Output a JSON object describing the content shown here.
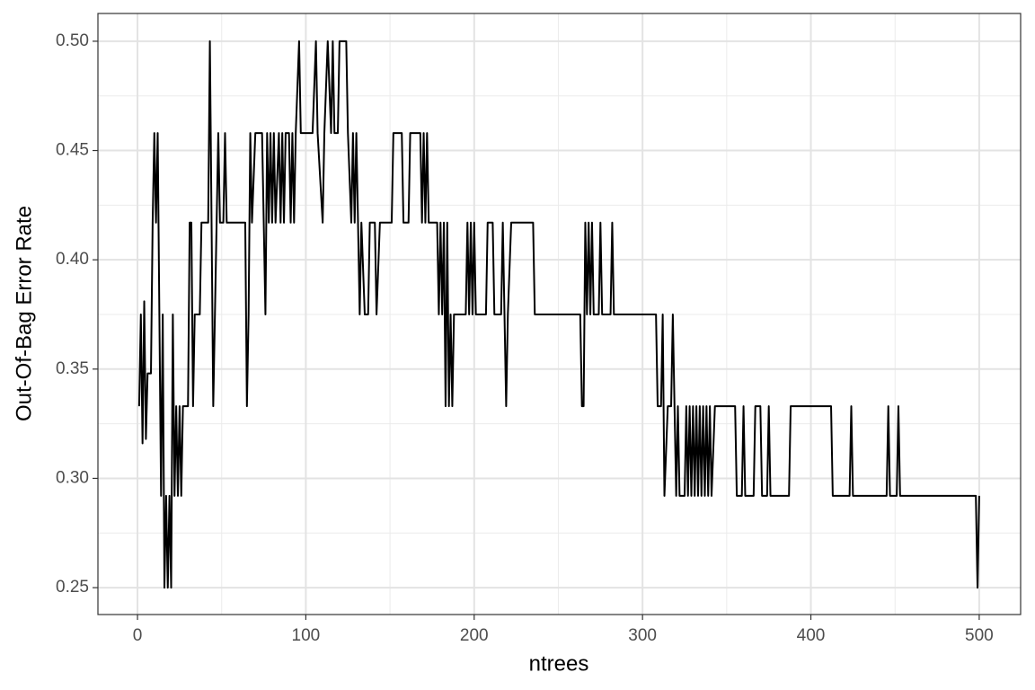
{
  "chart_data": {
    "type": "line",
    "xlabel": "ntrees",
    "ylabel": "Out-Of-Bag Error Rate",
    "color": "#000000",
    "grid": true,
    "xlim": [
      -23.5,
      524.6
    ],
    "xticks": [
      0,
      100,
      200,
      300,
      400,
      500
    ],
    "ylim": [
      0.2377,
      0.5127
    ],
    "yticks": [
      0.25,
      {
        "value": 0.3,
        "label": "0.30"
      },
      0.35,
      {
        "value": 0.4,
        "label": "0.40"
      },
      0.45,
      {
        "value": 0.5,
        "label": "0.50"
      }
    ],
    "x": [
      1,
      2,
      3,
      4,
      5,
      6,
      8,
      9,
      10,
      11,
      12,
      13,
      14,
      15,
      16,
      17,
      18,
      19,
      20,
      21,
      22,
      23,
      24,
      25,
      26,
      27,
      30,
      31,
      32,
      33,
      34,
      37,
      38,
      42,
      43,
      44,
      45,
      47,
      48,
      49,
      51,
      52,
      53,
      64,
      65,
      66,
      67,
      68,
      70,
      74,
      75,
      76,
      77,
      78,
      79,
      80,
      81,
      82,
      84,
      85,
      86,
      87,
      88,
      90,
      91,
      92,
      93,
      94,
      96,
      97,
      104,
      106,
      107,
      110,
      111,
      113,
      115,
      116,
      117,
      119,
      120,
      124,
      125,
      127,
      128,
      129,
      130,
      131,
      132,
      133,
      135,
      137,
      138,
      141,
      142,
      144,
      151,
      152,
      157,
      158,
      161,
      162,
      168,
      169,
      170,
      171,
      172,
      173,
      178,
      179,
      180,
      181,
      182,
      183,
      184,
      185,
      186,
      187,
      188,
      195,
      196,
      197,
      198,
      199,
      200,
      201,
      207,
      208,
      211,
      212,
      216,
      217,
      218,
      219,
      220,
      222,
      235,
      236,
      263,
      264,
      265,
      266,
      267,
      268,
      269,
      270,
      271,
      274,
      275,
      276,
      281,
      282,
      283,
      308,
      309,
      311,
      312,
      313,
      315,
      317,
      318,
      319,
      320,
      321,
      322,
      325,
      326,
      327,
      328,
      329,
      330,
      331,
      332,
      333,
      334,
      335,
      336,
      337,
      338,
      339,
      340,
      341,
      343,
      355,
      356,
      359,
      360,
      361,
      366,
      367,
      370,
      371,
      374,
      375,
      376,
      387,
      388,
      412,
      413,
      423,
      424,
      425,
      445,
      446,
      447,
      451,
      452,
      453,
      498,
      499,
      500
    ],
    "values": [
      0.333,
      0.375,
      0.316,
      0.381,
      0.318,
      0.348,
      0.348,
      0.417,
      0.458,
      0.417,
      0.458,
      0.375,
      0.292,
      0.375,
      0.25,
      0.292,
      0.25,
      0.292,
      0.25,
      0.375,
      0.292,
      0.333,
      0.292,
      0.333,
      0.292,
      0.333,
      0.333,
      0.417,
      0.417,
      0.333,
      0.375,
      0.375,
      0.417,
      0.417,
      0.5,
      0.417,
      0.333,
      0.417,
      0.458,
      0.417,
      0.417,
      0.458,
      0.417,
      0.417,
      0.333,
      0.375,
      0.458,
      0.417,
      0.458,
      0.458,
      0.417,
      0.375,
      0.458,
      0.417,
      0.458,
      0.417,
      0.458,
      0.417,
      0.458,
      0.417,
      0.458,
      0.417,
      0.458,
      0.458,
      0.417,
      0.458,
      0.417,
      0.458,
      0.5,
      0.458,
      0.458,
      0.5,
      0.458,
      0.417,
      0.458,
      0.5,
      0.458,
      0.5,
      0.458,
      0.458,
      0.5,
      0.5,
      0.458,
      0.417,
      0.458,
      0.417,
      0.458,
      0.417,
      0.375,
      0.417,
      0.375,
      0.375,
      0.417,
      0.417,
      0.375,
      0.417,
      0.417,
      0.458,
      0.458,
      0.417,
      0.417,
      0.458,
      0.458,
      0.417,
      0.458,
      0.417,
      0.458,
      0.417,
      0.417,
      0.375,
      0.417,
      0.375,
      0.417,
      0.333,
      0.417,
      0.333,
      0.375,
      0.333,
      0.375,
      0.375,
      0.417,
      0.375,
      0.417,
      0.375,
      0.417,
      0.375,
      0.375,
      0.417,
      0.417,
      0.375,
      0.375,
      0.417,
      0.375,
      0.333,
      0.375,
      0.417,
      0.417,
      0.375,
      0.375,
      0.333,
      0.333,
      0.417,
      0.375,
      0.417,
      0.375,
      0.417,
      0.375,
      0.375,
      0.417,
      0.375,
      0.375,
      0.417,
      0.375,
      0.375,
      0.333,
      0.333,
      0.375,
      0.292,
      0.333,
      0.333,
      0.375,
      0.333,
      0.292,
      0.333,
      0.292,
      0.292,
      0.333,
      0.292,
      0.333,
      0.292,
      0.333,
      0.292,
      0.333,
      0.292,
      0.333,
      0.292,
      0.333,
      0.292,
      0.333,
      0.292,
      0.333,
      0.292,
      0.333,
      0.333,
      0.292,
      0.292,
      0.333,
      0.292,
      0.292,
      0.333,
      0.333,
      0.292,
      0.292,
      0.333,
      0.292,
      0.292,
      0.333,
      0.333,
      0.292,
      0.292,
      0.333,
      0.292,
      0.292,
      0.333,
      0.292,
      0.292,
      0.333,
      0.292,
      0.292,
      0.25,
      0.292
    ]
  }
}
